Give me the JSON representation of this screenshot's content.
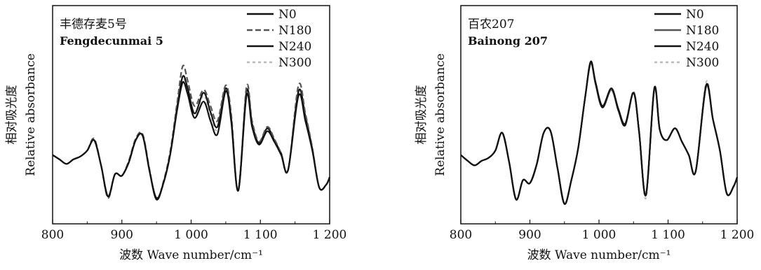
{
  "chart_data": [
    {
      "type": "line",
      "title": "丰德存麦5号",
      "subtitle": "Fengdecunmai 5",
      "xlabel": "波数 Wave number/cm⁻¹",
      "ylabel_cn": "相对吸光度",
      "ylabel_en": "Relative absorbance",
      "xlim": [
        800,
        1200
      ],
      "ylim": [
        0,
        1
      ],
      "y_ticks_shown": false,
      "x_ticks": [
        800,
        900,
        1000,
        1100,
        1200
      ],
      "x_tick_labels": [
        "800",
        "900",
        "1 000",
        "1 100",
        "1 200"
      ],
      "grid": false,
      "legend_position": "top-right",
      "x": [
        800,
        810,
        820,
        830,
        840,
        850,
        860,
        870,
        880,
        890,
        900,
        910,
        920,
        930,
        940,
        950,
        960,
        970,
        980,
        988,
        995,
        1005,
        1018,
        1028,
        1038,
        1050,
        1058,
        1068,
        1080,
        1088,
        1098,
        1110,
        1120,
        1130,
        1140,
        1155,
        1165,
        1175,
        1185,
        1195,
        1200
      ],
      "series": [
        {
          "name": "N0",
          "color": "#111111",
          "dash": "solid",
          "values": [
            0.37,
            0.34,
            0.31,
            0.34,
            0.36,
            0.4,
            0.47,
            0.3,
            0.09,
            0.24,
            0.23,
            0.32,
            0.47,
            0.5,
            0.26,
            0.07,
            0.18,
            0.38,
            0.68,
            0.86,
            0.78,
            0.62,
            0.73,
            0.6,
            0.51,
            0.8,
            0.59,
            0.13,
            0.77,
            0.56,
            0.44,
            0.53,
            0.46,
            0.37,
            0.27,
            0.77,
            0.6,
            0.4,
            0.15,
            0.17,
            0.22
          ]
        },
        {
          "name": "N180",
          "color": "#555555",
          "dash": "8,4",
          "values": [
            0.37,
            0.34,
            0.31,
            0.34,
            0.36,
            0.4,
            0.48,
            0.3,
            0.08,
            0.24,
            0.23,
            0.33,
            0.48,
            0.51,
            0.27,
            0.07,
            0.19,
            0.4,
            0.73,
            0.97,
            0.87,
            0.7,
            0.81,
            0.7,
            0.6,
            0.84,
            0.64,
            0.13,
            0.83,
            0.6,
            0.46,
            0.56,
            0.48,
            0.38,
            0.27,
            0.84,
            0.65,
            0.42,
            0.15,
            0.17,
            0.22
          ]
        },
        {
          "name": "N240",
          "color": "#111111",
          "dash": "solid",
          "values": [
            0.37,
            0.34,
            0.31,
            0.34,
            0.36,
            0.4,
            0.47,
            0.3,
            0.09,
            0.24,
            0.23,
            0.32,
            0.47,
            0.5,
            0.26,
            0.08,
            0.18,
            0.38,
            0.7,
            0.9,
            0.82,
            0.65,
            0.79,
            0.66,
            0.56,
            0.82,
            0.61,
            0.13,
            0.8,
            0.58,
            0.45,
            0.55,
            0.47,
            0.38,
            0.27,
            0.8,
            0.63,
            0.41,
            0.15,
            0.17,
            0.22
          ]
        },
        {
          "name": "N300",
          "color": "#bbbbbb",
          "dash": "4,4",
          "values": [
            0.37,
            0.34,
            0.31,
            0.34,
            0.36,
            0.4,
            0.47,
            0.3,
            0.09,
            0.24,
            0.23,
            0.32,
            0.47,
            0.5,
            0.26,
            0.07,
            0.18,
            0.38,
            0.69,
            0.88,
            0.8,
            0.64,
            0.77,
            0.64,
            0.54,
            0.81,
            0.6,
            0.13,
            0.78,
            0.57,
            0.44,
            0.54,
            0.46,
            0.37,
            0.27,
            0.79,
            0.62,
            0.4,
            0.15,
            0.17,
            0.22
          ]
        }
      ]
    },
    {
      "type": "line",
      "title": "百农207",
      "subtitle": "Bainong 207",
      "xlabel": "波数 Wave number/cm⁻¹",
      "ylabel_cn": "相对吸光度",
      "ylabel_en": "Relative absorbance",
      "xlim": [
        800,
        1200
      ],
      "ylim": [
        0,
        1
      ],
      "y_ticks_shown": false,
      "x_ticks": [
        800,
        900,
        1000,
        1100,
        1200
      ],
      "x_tick_labels": [
        "800",
        "900",
        "1 000",
        "1 100",
        "1 200"
      ],
      "grid": false,
      "legend_position": "top-right",
      "x": [
        800,
        810,
        820,
        830,
        840,
        850,
        860,
        870,
        880,
        890,
        900,
        910,
        920,
        930,
        940,
        950,
        960,
        970,
        980,
        988,
        995,
        1005,
        1018,
        1028,
        1038,
        1050,
        1058,
        1068,
        1080,
        1088,
        1098,
        1110,
        1120,
        1130,
        1140,
        1155,
        1165,
        1175,
        1185,
        1195,
        1200
      ],
      "series": [
        {
          "name": "N0",
          "color": "#111111",
          "dash": "solid",
          "values": [
            0.37,
            0.33,
            0.3,
            0.33,
            0.35,
            0.4,
            0.52,
            0.32,
            0.07,
            0.2,
            0.18,
            0.31,
            0.52,
            0.53,
            0.28,
            0.04,
            0.2,
            0.42,
            0.76,
            1.0,
            0.86,
            0.7,
            0.82,
            0.68,
            0.58,
            0.79,
            0.53,
            0.1,
            0.82,
            0.54,
            0.47,
            0.55,
            0.46,
            0.37,
            0.26,
            0.84,
            0.61,
            0.4,
            0.11,
            0.16,
            0.22
          ]
        },
        {
          "name": "N180",
          "color": "#555555",
          "dash": "solid",
          "values": [
            0.37,
            0.33,
            0.3,
            0.33,
            0.35,
            0.4,
            0.52,
            0.32,
            0.07,
            0.2,
            0.18,
            0.31,
            0.52,
            0.53,
            0.28,
            0.04,
            0.2,
            0.42,
            0.76,
            0.99,
            0.86,
            0.7,
            0.81,
            0.68,
            0.58,
            0.79,
            0.53,
            0.1,
            0.81,
            0.54,
            0.47,
            0.55,
            0.46,
            0.37,
            0.26,
            0.83,
            0.61,
            0.4,
            0.11,
            0.16,
            0.22
          ]
        },
        {
          "name": "N240",
          "color": "#111111",
          "dash": "solid",
          "values": [
            0.37,
            0.33,
            0.3,
            0.33,
            0.35,
            0.4,
            0.52,
            0.32,
            0.07,
            0.2,
            0.18,
            0.31,
            0.52,
            0.53,
            0.28,
            0.04,
            0.2,
            0.42,
            0.76,
            0.99,
            0.85,
            0.69,
            0.81,
            0.67,
            0.57,
            0.79,
            0.53,
            0.1,
            0.81,
            0.54,
            0.47,
            0.55,
            0.46,
            0.37,
            0.26,
            0.83,
            0.61,
            0.4,
            0.11,
            0.16,
            0.22
          ]
        },
        {
          "name": "N300",
          "color": "#bbbbbb",
          "dash": "4,4",
          "values": [
            0.37,
            0.33,
            0.3,
            0.33,
            0.35,
            0.4,
            0.52,
            0.32,
            0.07,
            0.2,
            0.18,
            0.31,
            0.52,
            0.53,
            0.28,
            0.04,
            0.2,
            0.42,
            0.76,
            1.0,
            0.86,
            0.7,
            0.82,
            0.68,
            0.58,
            0.8,
            0.53,
            0.08,
            0.82,
            0.54,
            0.47,
            0.55,
            0.46,
            0.37,
            0.26,
            0.86,
            0.61,
            0.4,
            0.11,
            0.16,
            0.22
          ]
        }
      ]
    }
  ]
}
